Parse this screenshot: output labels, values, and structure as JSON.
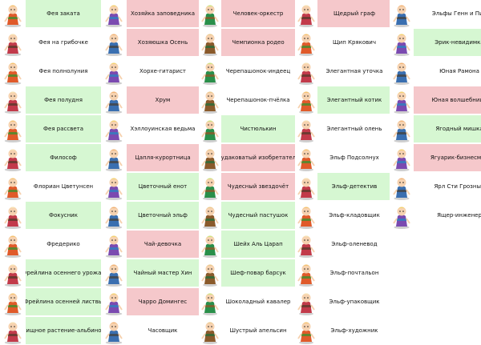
{
  "colors": {
    "green": "#d6f7d2",
    "pink": "#f5c8cb",
    "white": "#ffffff"
  },
  "columns": [
    {
      "items": [
        {
          "label": "Фея заката",
          "bg": "green",
          "icon": "fairy-icon"
        },
        {
          "label": "Фея на грибочке",
          "bg": "white",
          "icon": "fairy-icon"
        },
        {
          "label": "Фея полнолуния",
          "bg": "white",
          "icon": "fairy-icon"
        },
        {
          "label": "Фея полудня",
          "bg": "green",
          "icon": "fairy-icon"
        },
        {
          "label": "Фея рассвета",
          "bg": "green",
          "icon": "fairy-icon"
        },
        {
          "label": "Философ",
          "bg": "green",
          "icon": "character-icon"
        },
        {
          "label": "Флориан Цветунсен",
          "bg": "white",
          "icon": "character-icon"
        },
        {
          "label": "Фокусник",
          "bg": "green",
          "icon": "character-icon"
        },
        {
          "label": "Фредерико",
          "bg": "white",
          "icon": "character-icon"
        },
        {
          "label": "Фрейлина осеннего урожая",
          "bg": "green",
          "icon": "character-icon"
        },
        {
          "label": "Фрейлина осенней листвы",
          "bg": "green",
          "icon": "character-icon"
        },
        {
          "label": "Хищное растение-альбинос",
          "bg": "green",
          "icon": "plant-icon"
        }
      ]
    },
    {
      "items": [
        {
          "label": "Хозяйка заповедника",
          "bg": "pink",
          "icon": "character-icon"
        },
        {
          "label": "Хозяюшка Осень",
          "bg": "pink",
          "icon": "character-icon"
        },
        {
          "label": "Хорхе-гитарист",
          "bg": "white",
          "icon": "character-icon"
        },
        {
          "label": "Хрум",
          "bg": "pink",
          "icon": "creature-icon"
        },
        {
          "label": "Хэллоуинская ведьма",
          "bg": "white",
          "icon": "witch-icon"
        },
        {
          "label": "Цапля-курортница",
          "bg": "pink",
          "icon": "bird-icon"
        },
        {
          "label": "Цветочный енот",
          "bg": "green",
          "icon": "animal-icon"
        },
        {
          "label": "Цветочный эльф",
          "bg": "green",
          "icon": "elf-icon"
        },
        {
          "label": "Чай-девочка",
          "bg": "pink",
          "icon": "teacup-icon"
        },
        {
          "label": "Чайный мастер Хин",
          "bg": "green",
          "icon": "character-icon"
        },
        {
          "label": "Чарро Домингес",
          "bg": "pink",
          "icon": "character-icon"
        },
        {
          "label": "Часовщик",
          "bg": "white",
          "icon": "character-icon"
        }
      ]
    },
    {
      "items": [
        {
          "label": "Человек-оркестр",
          "bg": "pink",
          "icon": "character-icon"
        },
        {
          "label": "Чемпионка родео",
          "bg": "pink",
          "icon": "character-icon"
        },
        {
          "label": "Черепашонок-индеец",
          "bg": "white",
          "icon": "turtle-icon"
        },
        {
          "label": "Черепашонок-пчёлка",
          "bg": "white",
          "icon": "turtle-icon"
        },
        {
          "label": "Чистюлькин",
          "bg": "green",
          "icon": "character-icon"
        },
        {
          "label": "Чудаковатый изобретатель",
          "bg": "pink",
          "icon": "character-icon"
        },
        {
          "label": "Чудесный звездочёт",
          "bg": "pink",
          "icon": "wizard-icon"
        },
        {
          "label": "Чудесный пастушок",
          "bg": "green",
          "icon": "character-icon"
        },
        {
          "label": "Шейх Аль Царап",
          "bg": "green",
          "icon": "character-icon"
        },
        {
          "label": "Шеф-повар барсук",
          "bg": "green",
          "icon": "animal-icon"
        },
        {
          "label": "Шоколадный кавалер",
          "bg": "white",
          "icon": "character-icon"
        },
        {
          "label": "Шустрый апельсин",
          "bg": "white",
          "icon": "orange-icon"
        }
      ]
    },
    {
      "items": [
        {
          "label": "Щедрый граф",
          "bg": "pink",
          "icon": "character-icon"
        },
        {
          "label": "Щип Крякович",
          "bg": "white",
          "icon": "duck-icon"
        },
        {
          "label": "Элегантная уточка",
          "bg": "white",
          "icon": "duck-icon"
        },
        {
          "label": "Элегантный котик",
          "bg": "green",
          "icon": "cat-icon"
        },
        {
          "label": "Элегантный олень",
          "bg": "white",
          "icon": "deer-icon"
        },
        {
          "label": "Эльф Подсолнух",
          "bg": "white",
          "icon": "elf-icon"
        },
        {
          "label": "Эльф-детектив",
          "bg": "green",
          "icon": "elf-icon"
        },
        {
          "label": "Эльф-кладовщик",
          "bg": "white",
          "icon": "elf-icon"
        },
        {
          "label": "Эльф-оленевод",
          "bg": "white",
          "icon": "elf-icon"
        },
        {
          "label": "Эльф-почтальон",
          "bg": "white",
          "icon": "elf-icon"
        },
        {
          "label": "Эльф-упаковщик",
          "bg": "white",
          "icon": "elf-icon"
        },
        {
          "label": "Эльф-художник",
          "bg": "white",
          "icon": "elf-icon"
        }
      ]
    },
    {
      "items": [
        {
          "label": "Эльфы Генн и Пин",
          "bg": "white",
          "icon": "elf-icon"
        },
        {
          "label": "Эрик-невидимка",
          "bg": "green",
          "icon": "character-icon"
        },
        {
          "label": "Юная Рамона",
          "bg": "white",
          "icon": "character-icon"
        },
        {
          "label": "Юная волшебница",
          "bg": "pink",
          "icon": "character-icon"
        },
        {
          "label": "Ягодный мишка",
          "bg": "green",
          "icon": "bear-icon"
        },
        {
          "label": "Ягуарик-бизнесмен",
          "bg": "pink",
          "icon": "animal-icon"
        },
        {
          "label": "Ярл Сти Грозный",
          "bg": "white",
          "icon": "viking-icon"
        },
        {
          "label": "Ящер-инженер",
          "bg": "white",
          "icon": "lizard-icon"
        }
      ]
    }
  ]
}
